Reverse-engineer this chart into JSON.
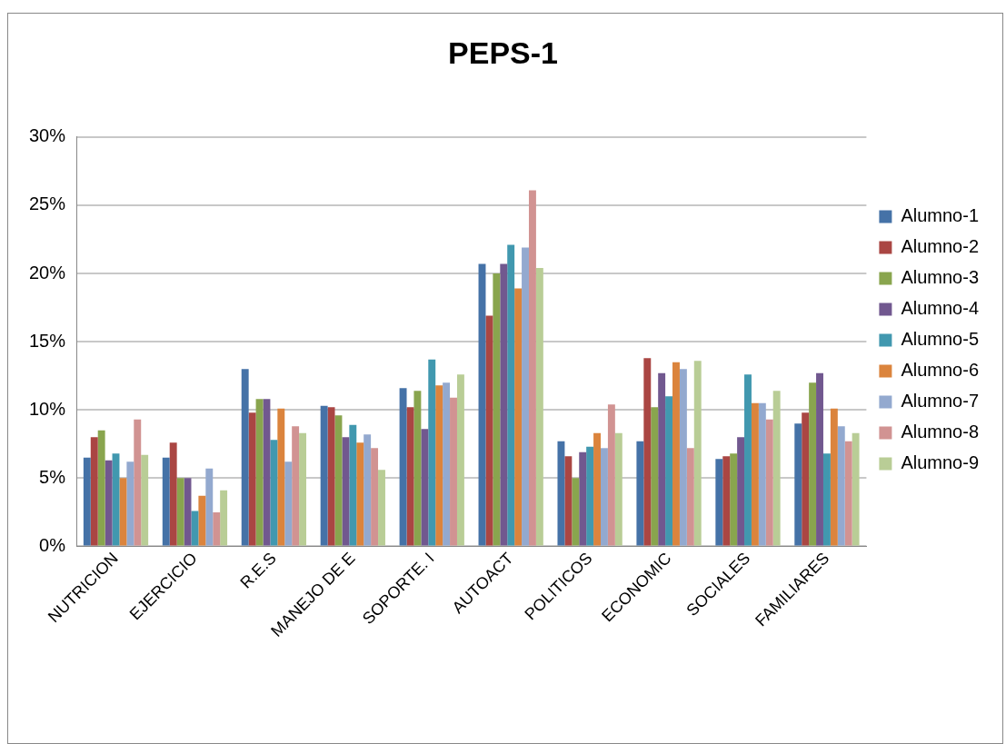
{
  "chart_data": {
    "type": "bar",
    "title": "PEPS-1",
    "categories": [
      "NUTRICION",
      "EJERCICIO",
      "R.E.S",
      "MANEJO DE E",
      "SOPORTE. I",
      "AUTOACT",
      "POLITICOS",
      "ECONOMIC",
      "SOCIALES",
      "FAMILIARES"
    ],
    "series": [
      {
        "name": "Alumno-1",
        "color": "#4572a7",
        "values": [
          6.5,
          6.5,
          13.0,
          10.3,
          11.6,
          20.7,
          7.7,
          7.7,
          6.4,
          9.0
        ]
      },
      {
        "name": "Alumno-2",
        "color": "#aa4643",
        "values": [
          8.0,
          7.6,
          9.8,
          10.2,
          10.2,
          16.9,
          6.6,
          13.8,
          6.6,
          9.8
        ]
      },
      {
        "name": "Alumno-3",
        "color": "#89a54e",
        "values": [
          8.5,
          5.0,
          10.8,
          9.6,
          11.4,
          20.0,
          5.0,
          10.2,
          6.8,
          12.0
        ]
      },
      {
        "name": "Alumno-4",
        "color": "#71588f",
        "values": [
          6.3,
          5.0,
          10.8,
          8.0,
          8.6,
          20.7,
          6.9,
          12.7,
          8.0,
          12.7
        ]
      },
      {
        "name": "Alumno-5",
        "color": "#4198af",
        "values": [
          6.8,
          2.6,
          7.8,
          8.9,
          13.7,
          22.1,
          7.3,
          11.0,
          12.6,
          6.8
        ]
      },
      {
        "name": "Alumno-6",
        "color": "#db843d",
        "values": [
          5.0,
          3.7,
          10.1,
          7.6,
          11.8,
          18.9,
          8.3,
          13.5,
          10.5,
          10.1
        ]
      },
      {
        "name": "Alumno-7",
        "color": "#93a9cf",
        "values": [
          6.2,
          5.7,
          6.2,
          8.2,
          12.0,
          21.9,
          7.2,
          13.0,
          10.5,
          8.8
        ]
      },
      {
        "name": "Alumno-8",
        "color": "#d19392",
        "values": [
          9.3,
          2.5,
          8.8,
          7.2,
          10.9,
          26.1,
          10.4,
          7.2,
          9.3,
          7.7
        ]
      },
      {
        "name": "Alumno-9",
        "color": "#b9cd96",
        "values": [
          6.7,
          4.1,
          8.3,
          5.6,
          12.6,
          20.4,
          8.3,
          13.6,
          11.4,
          8.3
        ]
      }
    ],
    "ylim": [
      0,
      30
    ],
    "yticks": [
      {
        "value": 0,
        "label": "0%"
      },
      {
        "value": 5,
        "label": "5%"
      },
      {
        "value": 10,
        "label": "10%"
      },
      {
        "value": 15,
        "label": "15%"
      },
      {
        "value": 20,
        "label": "20%"
      },
      {
        "value": 25,
        "label": "25%"
      },
      {
        "value": 30,
        "label": "30%"
      }
    ],
    "grid": "y",
    "legend": "right"
  }
}
